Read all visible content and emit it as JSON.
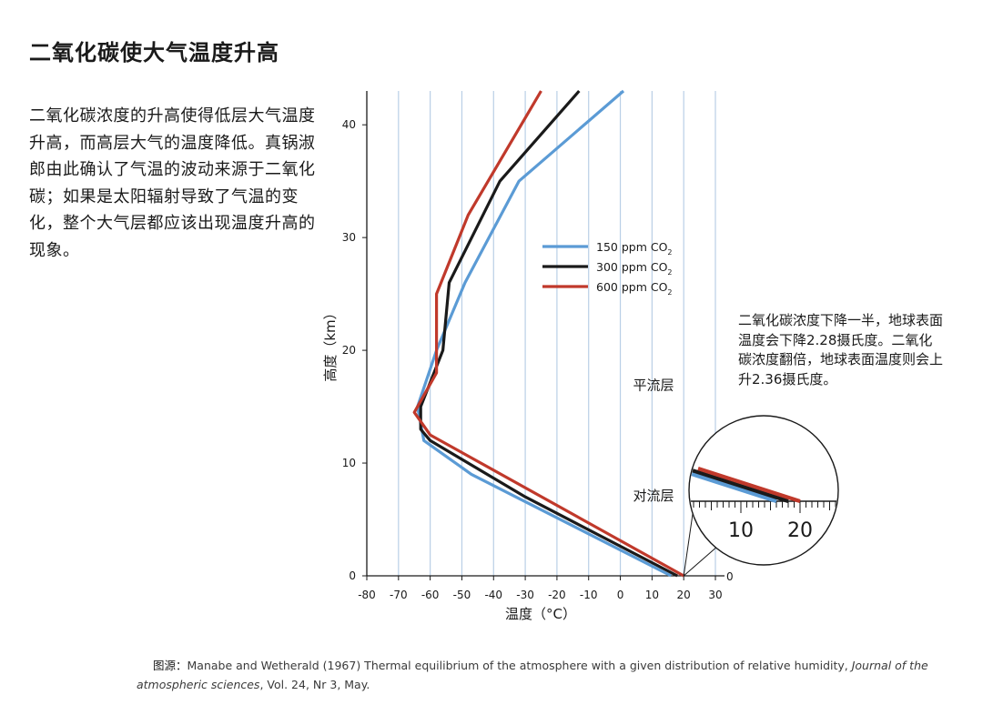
{
  "page": {
    "title": "二氧化碳使大气温度升高",
    "body": "二氧化碳浓度的升高使得低层大气温度升高，而高层大气的温度降低。真锅淑郎由此确认了气温的波动来源于二氧化碳；如果是太阳辐射导致了气温的变化，整个大气层都应该出现温度升高的现象。",
    "side_note": "二氧化碳浓度下降一半，地球表面温度会下降2.28摄氏度。二氧化碳浓度翻倍，地球表面温度则会上升2.36摄氏度。",
    "source_label": "图源：",
    "source_text": "Manabe and Wetherald (1967) Thermal equilibrium of the atmosphere with a given distribution of relative humidity, ",
    "source_journal": "Journal of the atmospheric sciences",
    "source_tail": ", Vol. 24, Nr 3, May."
  },
  "chart_data": {
    "type": "line",
    "xlabel": "温度（°C）",
    "ylabel": "高度（km）",
    "xlim": [
      -80,
      30
    ],
    "ylim": [
      0,
      43
    ],
    "x_ticks": [
      -80,
      -70,
      -60,
      -50,
      -40,
      -30,
      -20,
      -10,
      0,
      10,
      20,
      30
    ],
    "y_ticks": [
      0,
      10,
      20,
      30,
      40
    ],
    "vertical_grid": true,
    "legend_position": "center-right",
    "annotations": [
      {
        "text": "平流层",
        "x": 4,
        "y": 16.5
      },
      {
        "text": "对流层",
        "x": 4,
        "y": 6.7
      }
    ],
    "series": [
      {
        "name": "150 ppm CO2",
        "color": "#5b9bd5",
        "points": [
          [
            16,
            0
          ],
          [
            -47,
            9
          ],
          [
            -62,
            12
          ],
          [
            -64,
            15
          ],
          [
            -58,
            20
          ],
          [
            -49,
            26
          ],
          [
            -32,
            35
          ],
          [
            1,
            43
          ]
        ]
      },
      {
        "name": "300 ppm CO2",
        "color": "#1a1a1a",
        "points": [
          [
            18,
            0
          ],
          [
            -30,
            7
          ],
          [
            -60,
            12
          ],
          [
            -63,
            13
          ],
          [
            -63,
            15
          ],
          [
            -56,
            20
          ],
          [
            -54,
            26
          ],
          [
            -38,
            35
          ],
          [
            -13,
            43
          ]
        ]
      },
      {
        "name": "600 ppm CO2",
        "color": "#c0392b",
        "points": [
          [
            20,
            0
          ],
          [
            -60,
            12.5
          ],
          [
            -65,
            14.5
          ],
          [
            -58,
            18
          ],
          [
            -58,
            25
          ],
          [
            -48,
            32
          ],
          [
            -25,
            43
          ]
        ]
      }
    ],
    "inset": {
      "description": "magnified view of surface temperatures",
      "tick_labels": [
        "10",
        "20"
      ],
      "surface_values": [
        16,
        18,
        20
      ]
    }
  }
}
